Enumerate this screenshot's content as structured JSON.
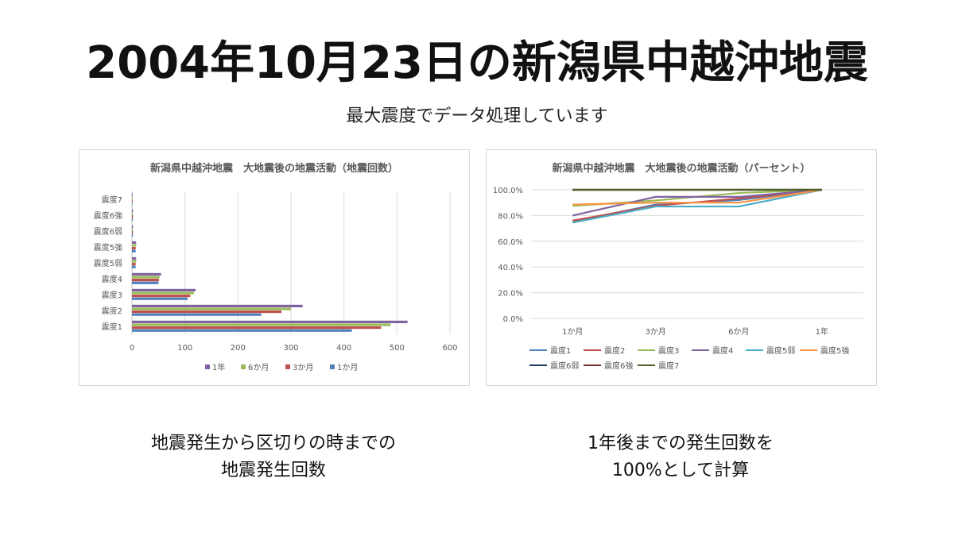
{
  "slide": {
    "title": "2004年10月23日の新潟県中越沖地震",
    "subtitle": "最大震度でデータ処理しています",
    "caption_left": [
      "地震発生から区切りの時までの",
      "地震発生回数"
    ],
    "caption_right": [
      "1年後までの発生回数を",
      "100%として計算"
    ]
  },
  "chart_data": [
    {
      "type": "bar",
      "orientation": "horizontal",
      "title": "新潟県中越沖地震　大地震後の地震活動（地震回数）",
      "categories": [
        "震度1",
        "震度2",
        "震度3",
        "震度4",
        "震度5弱",
        "震度5強",
        "震度6弱",
        "震度6強",
        "震度7"
      ],
      "series": [
        {
          "name": "1年",
          "color": "#8064a2",
          "values": [
            520,
            322,
            120,
            55,
            8,
            8,
            2,
            2,
            1
          ]
        },
        {
          "name": "6か月",
          "color": "#9bbb59",
          "values": [
            488,
            300,
            117,
            52,
            8,
            8,
            2,
            2,
            1
          ]
        },
        {
          "name": "3か月",
          "color": "#c0504d",
          "values": [
            470,
            282,
            110,
            51,
            7,
            7,
            2,
            2,
            1
          ]
        },
        {
          "name": "1か月",
          "color": "#4f81bd",
          "values": [
            415,
            244,
            105,
            50,
            7,
            7,
            2,
            2,
            1
          ]
        }
      ],
      "xlim": [
        0,
        600
      ],
      "xticks": [
        0,
        100,
        200,
        300,
        400,
        500,
        600
      ],
      "grid": true,
      "legend": "bottom"
    },
    {
      "type": "line",
      "title": "新潟県中越沖地震　大地震後の地震活動（パーセント）",
      "categories": [
        "1か月",
        "3か月",
        "6か月",
        "1年"
      ],
      "ylim": [
        0,
        100
      ],
      "yticks": [
        "0.0%",
        "20.0%",
        "40.0%",
        "60.0%",
        "80.0%",
        "100.0%"
      ],
      "series": [
        {
          "name": "震度1",
          "color": "#4f81bd",
          "values": [
            75.3,
            88.5,
            92.0,
            100
          ]
        },
        {
          "name": "震度2",
          "color": "#c0504d",
          "values": [
            76.0,
            87.6,
            93.2,
            100
          ]
        },
        {
          "name": "震度3",
          "color": "#9bbb59",
          "values": [
            87.5,
            91.7,
            97.5,
            100
          ]
        },
        {
          "name": "震度4",
          "color": "#8064a2",
          "values": [
            80.0,
            94.5,
            94.5,
            100
          ]
        },
        {
          "name": "震度5弱",
          "color": "#4bacc6",
          "values": [
            74.5,
            87.0,
            87.0,
            100
          ]
        },
        {
          "name": "震度5強",
          "color": "#f79646",
          "values": [
            88.5,
            90.0,
            90.0,
            100
          ]
        },
        {
          "name": "震度6弱",
          "color": "#1f3864",
          "values": [
            100,
            100,
            100,
            100
          ]
        },
        {
          "name": "震度6強",
          "color": "#7b2c2c",
          "values": [
            100,
            100,
            100,
            100
          ]
        },
        {
          "name": "震度7",
          "color": "#4f6228",
          "values": [
            100,
            100,
            100,
            100
          ]
        }
      ],
      "grid": true,
      "legend": "bottom"
    }
  ]
}
